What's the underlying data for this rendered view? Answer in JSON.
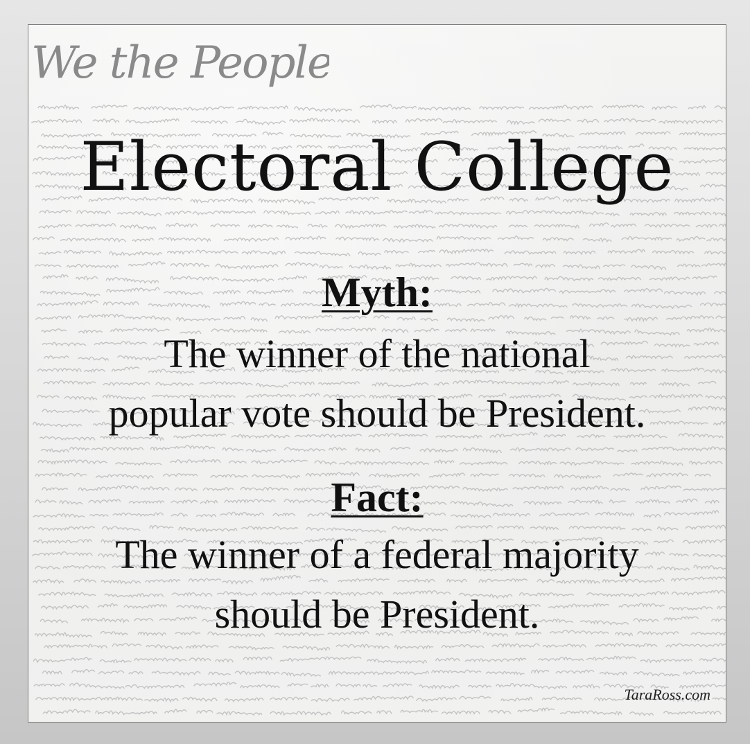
{
  "header": {
    "logo_text": "We the People",
    "title": "Electoral College"
  },
  "myth": {
    "label": "Myth:",
    "line1": "The winner of the national",
    "line2": "popular vote should be President."
  },
  "fact": {
    "label": "Fact:",
    "line1": "The winner of a federal majority",
    "line2": "should be President."
  },
  "credit": "TaraRoss.com",
  "colors": {
    "text": "#111111",
    "paper": "#f1f1f0",
    "border": "#7a7a7a",
    "handwriting": "#8a8a8a"
  }
}
